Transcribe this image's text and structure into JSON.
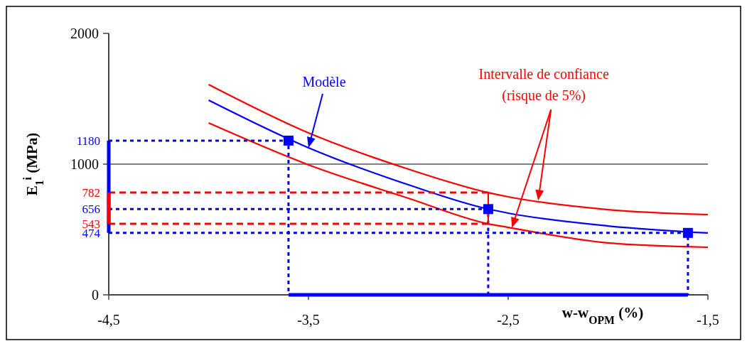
{
  "chart_data": {
    "type": "line",
    "xlabel": "w-w$_{OPM}$ (%)",
    "ylabel": "E$_{1}$$^{i}$ (MPa)",
    "xlim": [
      -4.5,
      -1.5
    ],
    "xticks": [
      {
        "value": -4.5,
        "label": "-4,5"
      },
      {
        "value": -3.5,
        "label": "-3,5"
      },
      {
        "value": -2.5,
        "label": "-2,5"
      },
      {
        "value": -1.5,
        "label": "-1,5"
      }
    ],
    "ylim": [
      0,
      2000
    ],
    "yticks": [
      0,
      1000,
      2000
    ],
    "ref_lines": [
      {
        "axis": "y",
        "value": 1000,
        "color": "#000000"
      }
    ],
    "marker": "none",
    "line_style": "solid",
    "annotations": [
      {
        "text": "Intervalle de confiance\n(risque de 5%)",
        "x": -2.35,
        "y": 721
      }
    ],
    "series": [
      {
        "color": "#ff0000",
        "x": [
          -4,
          -3.5,
          -3,
          -2.6,
          -2.5,
          -2,
          -1.5
        ],
        "values": [
          1609,
          1239,
          962,
          782,
          750,
          652,
          614
        ]
      },
      {
        "name": "Modèle",
        "color": "#0000ff",
        "x": [
          -4,
          -3.5,
          -3,
          -2.6,
          -2.5,
          -2,
          -1.5
        ],
        "values": [
          1489,
          1125,
          842,
          656,
          625,
          527,
          473
        ]
      },
      {
        "color": "#ff0000",
        "x": [
          -4,
          -3.5,
          -3,
          -2.6,
          -2.5,
          -2,
          -1.5
        ],
        "values": [
          1315,
          995,
          739,
          543,
          516,
          397,
          364
        ]
      },
      {
        "type": "line",
        "color": "#ff0000",
        "line_style": "dashed",
        "x": [
          -4.5,
          -2.6
        ],
        "values": [
          782,
          782
        ],
        "value_labels": [
          "782",
          null
        ]
      },
      {
        "type": "line",
        "color": "#ff0000",
        "line_style": "dashed",
        "x": [
          -4.5,
          -2.6
        ],
        "values": [
          543,
          543
        ],
        "value_labels": [
          "543",
          null
        ]
      },
      {
        "type": "line",
        "color": "#0000ff",
        "line_style": "dotted",
        "x": [
          -4.5,
          -3.6,
          -3.6
        ],
        "values": [
          1180,
          1180,
          0
        ],
        "value_labels": [
          "1180",
          null,
          null
        ]
      },
      {
        "type": "line",
        "color": "#0000ff",
        "line_style": "dotted",
        "x": [
          -4.5,
          -2.6,
          -2.6
        ],
        "values": [
          656,
          656,
          0
        ],
        "value_labels": [
          "656",
          null,
          null
        ]
      },
      {
        "type": "line",
        "color": "#0000ff",
        "line_style": "dotted",
        "x": [
          -4.5,
          -1.6,
          -1.6
        ],
        "values": [
          474,
          474,
          0
        ],
        "value_labels": [
          "474",
          null,
          null
        ]
      },
      {
        "type": "line",
        "color": "#0000ff",
        "x": [
          -4.5,
          -4.5
        ],
        "values": [
          474,
          1180
        ]
      },
      {
        "type": "line",
        "color": "#ff0000",
        "x": [
          -4.5,
          -4.5
        ],
        "values": [
          543,
          782
        ]
      },
      {
        "type": "line",
        "color": "#0000ff",
        "x": [
          -3.6,
          -1.6
        ],
        "values": [
          0,
          0
        ]
      },
      {
        "type": "line",
        "color": "#ff0000",
        "x": [
          -2.6,
          -2.6
        ],
        "values": [
          543,
          782
        ]
      },
      {
        "type": "scatter",
        "color": "#0000ff",
        "marker": "square",
        "x": [
          -3.6,
          -2.6,
          -1.6
        ],
        "values": [
          1180,
          656,
          474
        ]
      }
    ]
  }
}
